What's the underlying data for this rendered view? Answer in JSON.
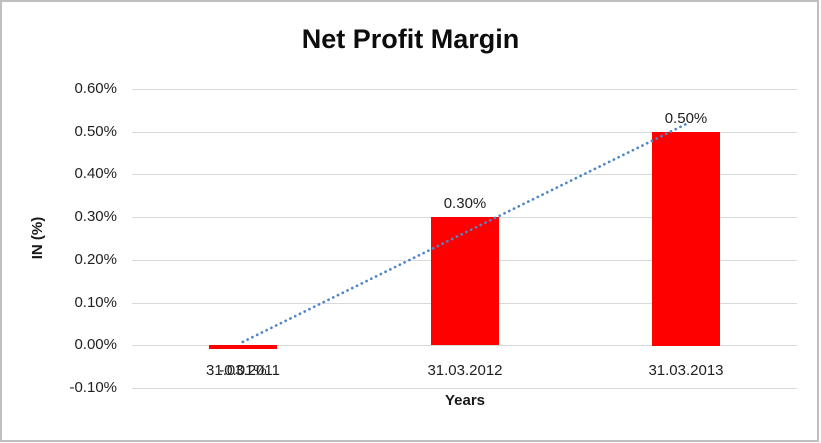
{
  "window": {
    "background_color": "#ffffff",
    "border_color": "#bfbfbf"
  },
  "chart_data": {
    "type": "bar",
    "title": "Net Profit Margin",
    "xlabel": "Years",
    "ylabel": "IN (%)",
    "categories": [
      "31.03.2011",
      "31.03.2012",
      "31.03.2013"
    ],
    "values": [
      -0.01,
      0.3,
      0.5
    ],
    "data_labels": [
      "-0.01%",
      "0.30%",
      "0.50%"
    ],
    "series_name": "Net Profit Margin",
    "bar_color": "#ff0000",
    "ylim": [
      -0.1,
      0.6
    ],
    "yticks": [
      {
        "value": 0.6,
        "label": "0.60%"
      },
      {
        "value": 0.5,
        "label": "0.50%"
      },
      {
        "value": 0.4,
        "label": "0.40%"
      },
      {
        "value": 0.3,
        "label": "0.30%"
      },
      {
        "value": 0.2,
        "label": "0.20%"
      },
      {
        "value": 0.1,
        "label": "0.10%"
      },
      {
        "value": 0.0,
        "label": "0.00%"
      },
      {
        "value": -0.1,
        "label": "-0.10%"
      }
    ],
    "grid": true,
    "gridline_color": "#d9d9d9",
    "legend": "none",
    "trendline": {
      "type": "linear",
      "style": "dotted",
      "color": "#4e86c8",
      "start_value": 0.008,
      "end_value": 0.518
    },
    "notes": "negative 2011 data label overlaps the 31.03.2011 category label below the zero axis"
  }
}
